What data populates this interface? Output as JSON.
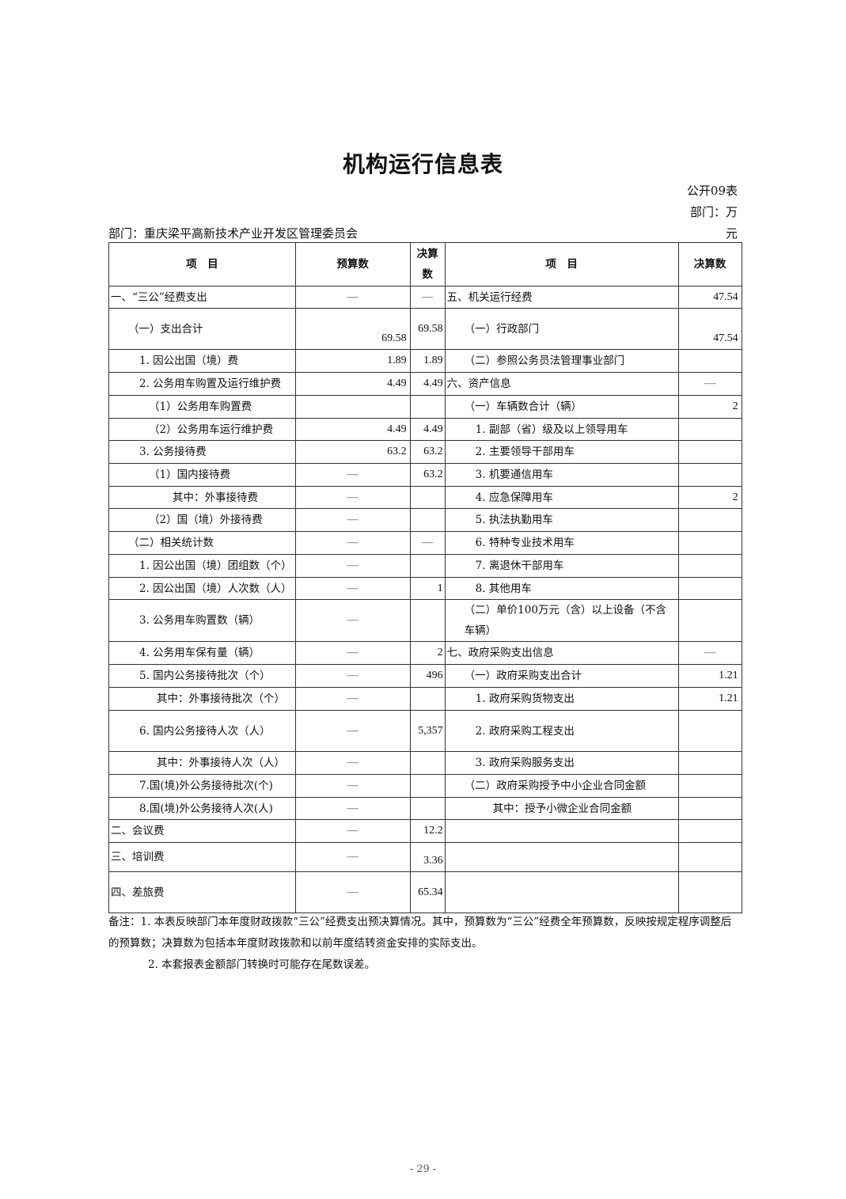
{
  "title": "机构运行信息表",
  "table_code": "公开09表",
  "unit_line1": "部门：万",
  "unit_line2": "元",
  "department": "部门：重庆梁平高新技术产业开发区管理委员会",
  "headers": [
    "项　目",
    "预算数",
    "决算数",
    "项　目",
    "决算数"
  ],
  "rows": [
    [
      "一、“三公”经费支出",
      "—",
      "—",
      "五、机关运行经费",
      "47.54"
    ],
    [
      "（一）支出合计",
      "69.58",
      "69.58",
      "（一）行政部门",
      "47.54"
    ],
    [
      "1. 因公出国（境）费",
      "1.89",
      "1.89",
      "（二）参照公务员法管理事业部门",
      ""
    ],
    [
      "2. 公务用车购置及运行维护费",
      "4.49",
      "4.49",
      "六、资产信息",
      "—"
    ],
    [
      "（1）公务用车购置费",
      "",
      "",
      "（一）车辆数合计（辆）",
      "2"
    ],
    [
      "（2）公务用车运行维护费",
      "4.49",
      "4.49",
      "1. 副部（省）级及以上领导用车",
      ""
    ],
    [
      "3. 公务接待费",
      "63.2",
      "63.2",
      "2. 主要领导干部用车",
      ""
    ],
    [
      "（1）国内接待费",
      "—",
      "63.2",
      "3. 机要通信用车",
      ""
    ],
    [
      "其中：外事接待费",
      "—",
      "",
      "4. 应急保障用车",
      "2"
    ],
    [
      "（2）国（境）外接待费",
      "—",
      "",
      "5. 执法执勤用车",
      ""
    ],
    [
      "（二）相关统计数",
      "—",
      "—",
      "6. 特种专业技术用车",
      ""
    ],
    [
      "1. 因公出国（境）团组数（个）",
      "—",
      "",
      "7. 离退休干部用车",
      ""
    ],
    [
      "2. 因公出国（境）人次数（人）",
      "—",
      "1",
      "8. 其他用车",
      ""
    ],
    [
      "3. 公务用车购置数（辆）",
      "—",
      "",
      "（二）单价100万元（含）以上设备（不含车辆）",
      ""
    ],
    [
      "4. 公务用车保有量（辆）",
      "—",
      "2",
      "七、政府采购支出信息",
      "—"
    ],
    [
      "5. 国内公务接待批次（个）",
      "—",
      "496",
      "（一）政府采购支出合计",
      "1.21"
    ],
    [
      "其中：外事接待批次（个）",
      "—",
      "",
      "1. 政府采购货物支出",
      "1.21"
    ],
    [
      "6. 国内公务接待人次（人）",
      "—",
      "5,357",
      "2. 政府采购工程支出",
      ""
    ],
    [
      "其中：外事接待人次（人）",
      "—",
      "",
      "3. 政府采购服务支出",
      ""
    ],
    [
      "7.国(境)外公务接待批次(个)",
      "—",
      "",
      "（二）政府采购授予中小企业合同金额",
      ""
    ],
    [
      "8.国(境)外公务接待人次(人)",
      "—",
      "",
      "其中：授予小微企业合同金额",
      ""
    ],
    [
      "二、会议费",
      "—",
      "12.2",
      "",
      ""
    ],
    [
      "三、培训费",
      "—",
      "3.36",
      "",
      ""
    ],
    [
      "四、差旅费",
      "—",
      "65.34",
      "",
      ""
    ]
  ],
  "notes": [
    "备注：1. 本表反映部门本年度财政拨款“三公”经费支出预决算情况。其中，预算数为“三公”经费全年预算数，反映按规定程序调整后的预算数；决算数为包括本年度财政拨款和以前年度结转资金安排的实际支出。",
    "2. 本套报表金额部门转换时可能存在尾数误差。"
  ],
  "page_number": "- 29 -"
}
